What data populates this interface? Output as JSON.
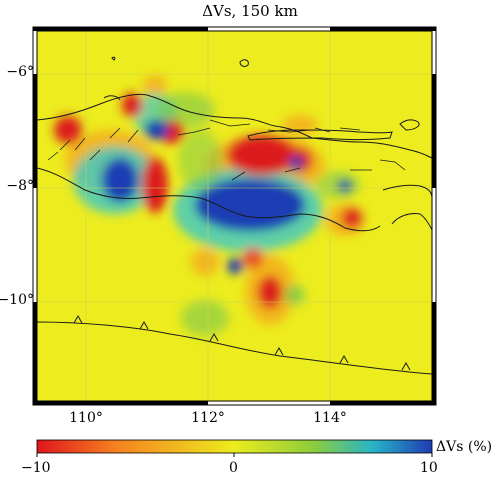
{
  "title": "ΔVs, 150 km",
  "map": {
    "y_ticks": [
      "−6°",
      "−8°",
      "−10°"
    ],
    "x_ticks": [
      "110°",
      "112°",
      "114°"
    ],
    "lon_range": [
      109.4,
      115.6
    ],
    "lat_range": [
      -11.7,
      -5.3
    ]
  },
  "colorbar": {
    "label": "ΔVs (%)",
    "min_label": "−10",
    "mid_label": "0",
    "max_label": "10",
    "colors": [
      "#e0141e",
      "#f58220",
      "#ecec1e",
      "#8ccc3c",
      "#28b4c8",
      "#1e3cb4"
    ]
  },
  "colors": {
    "background": "#ecec1e",
    "red": "#dc1e1e",
    "blue": "#1e3cb4"
  }
}
